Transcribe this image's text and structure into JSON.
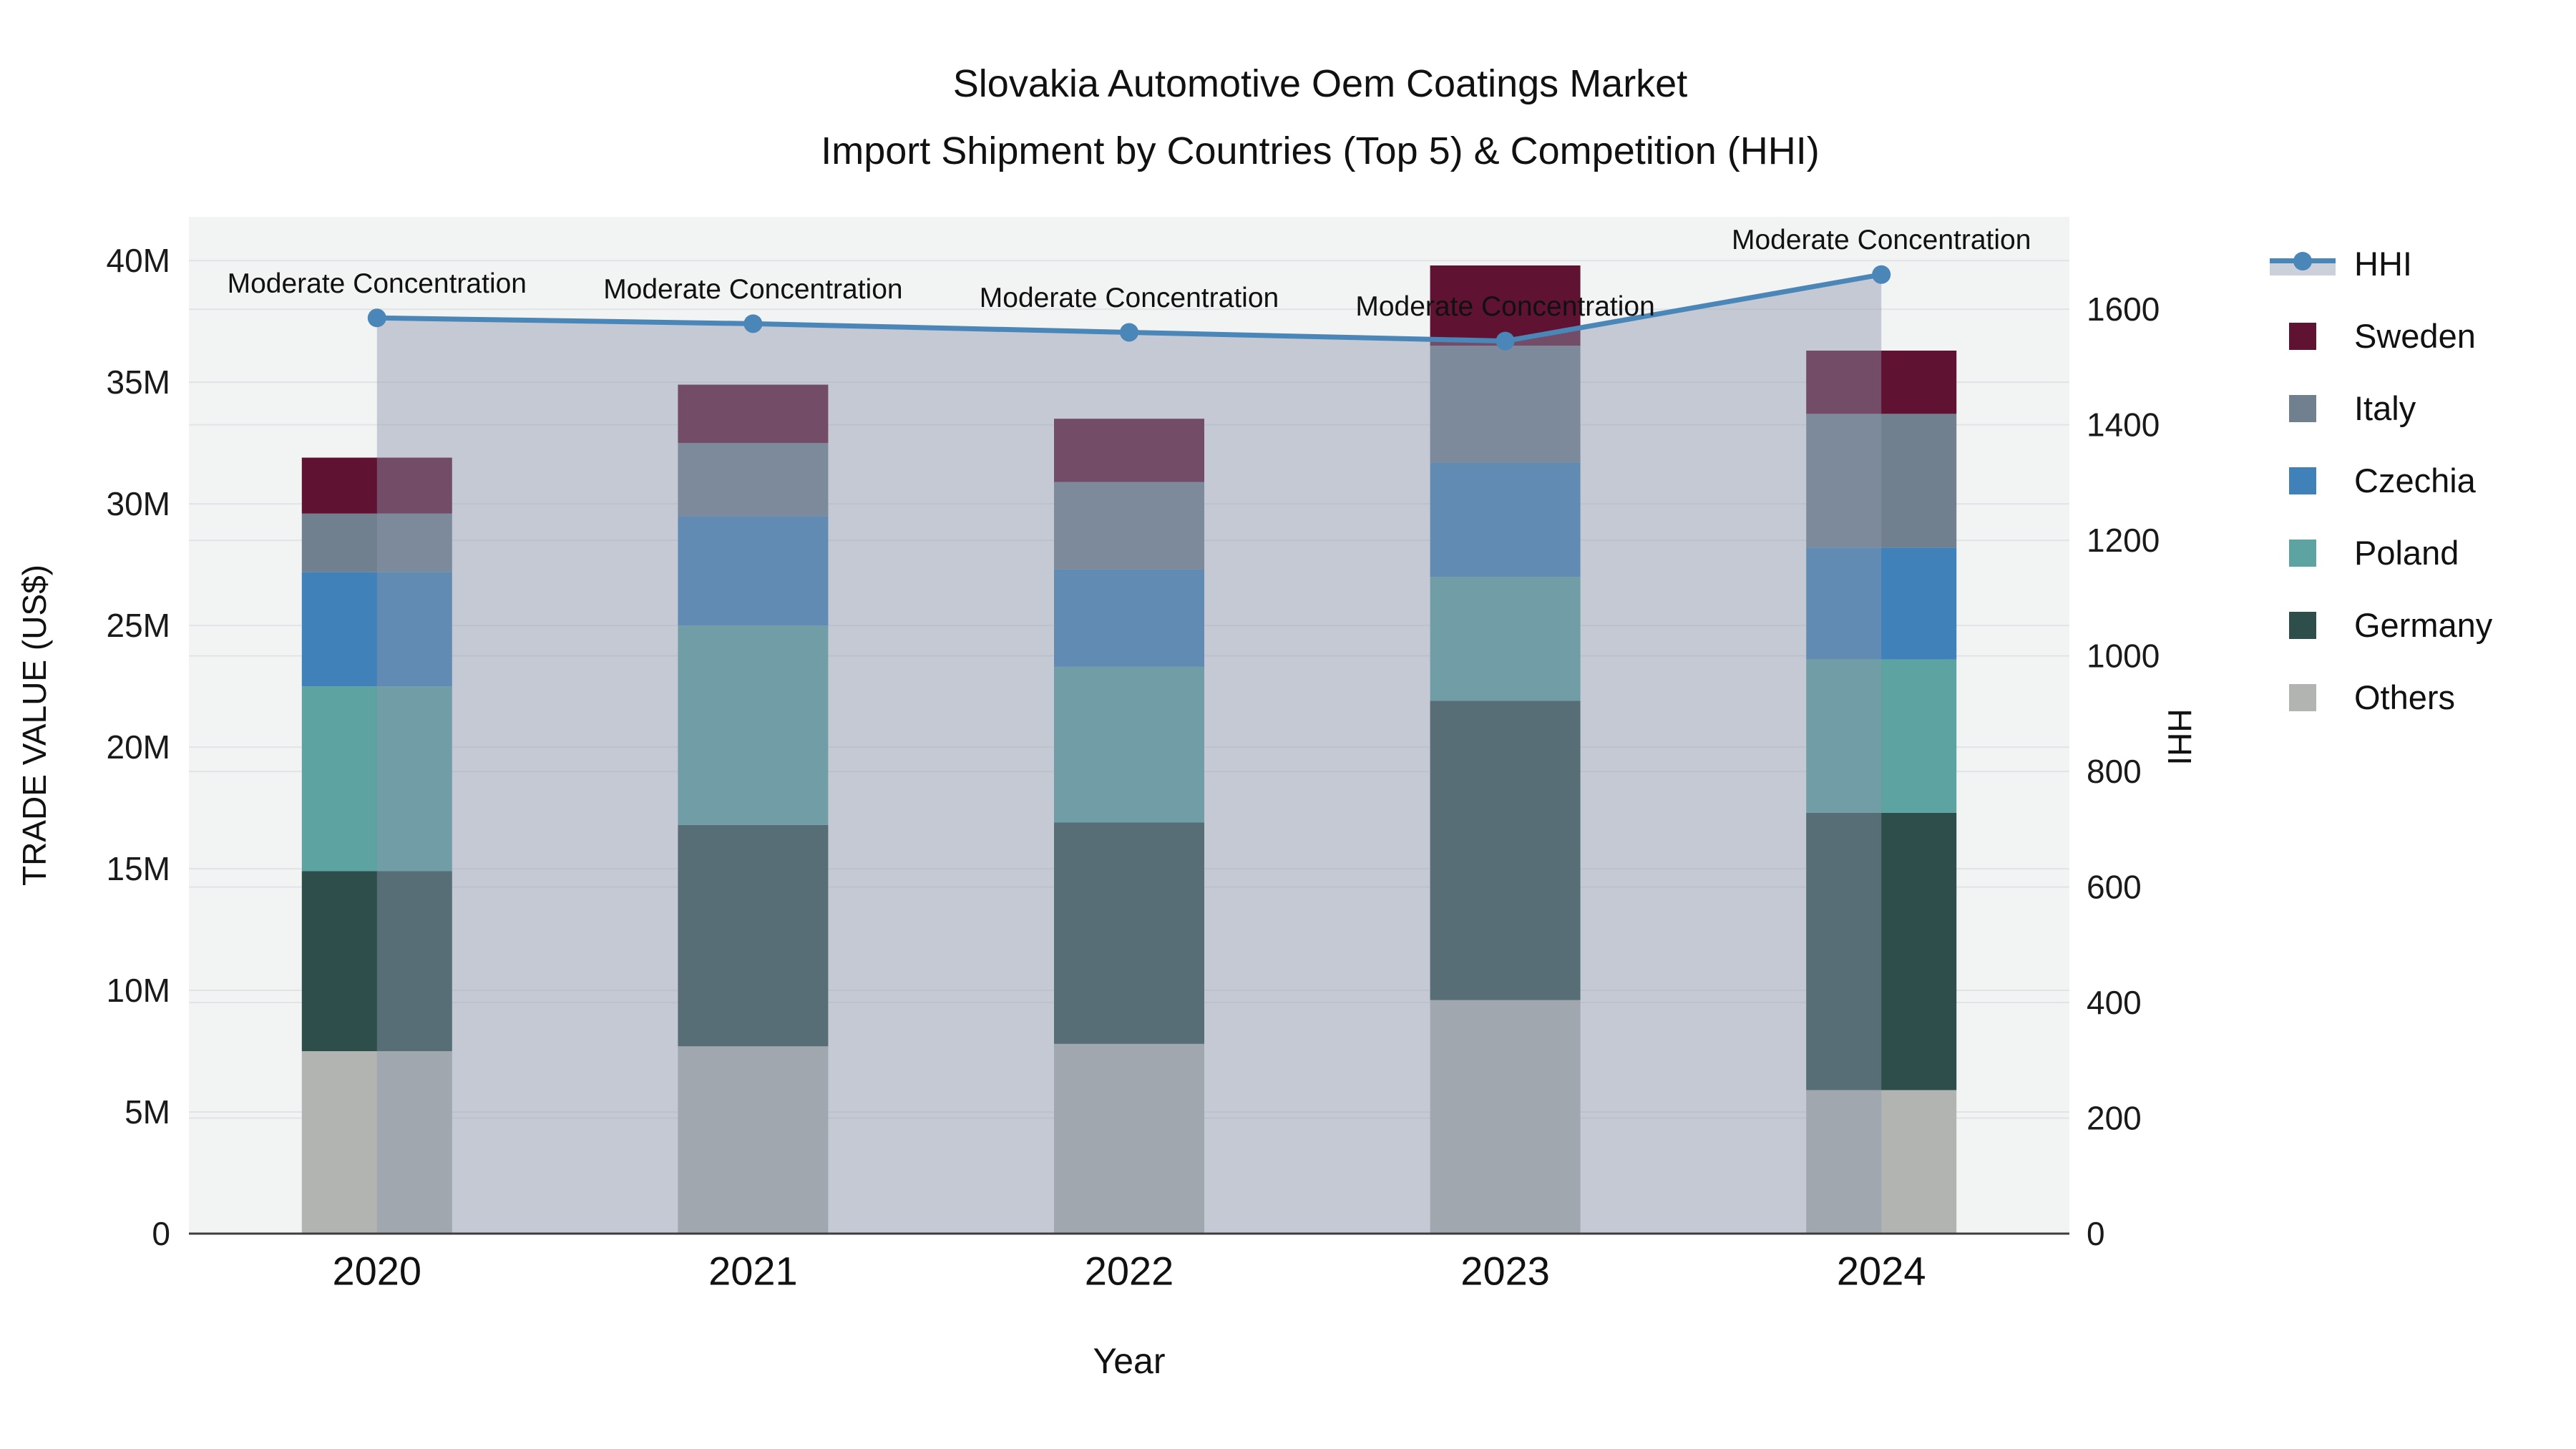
{
  "chart_data": {
    "type": "stacked-bar+line-dual-axis",
    "title": "Slovakia Automotive Oem Coatings Market",
    "subtitle": "Import Shipment by Countries (Top 5) & Competition (HHI)",
    "xlabel": "Year",
    "ylabel_left": "TRADE VALUE (US$)",
    "ylabel_right": "HHI",
    "values_unit": "millions of US$",
    "categories": [
      "2020",
      "2021",
      "2022",
      "2023",
      "2024"
    ],
    "stack_order_note": "series listed bottom-to-top",
    "series": [
      {
        "name": "Others",
        "color": "#b2b4b1",
        "values": [
          7.5,
          7.7,
          7.8,
          9.6,
          5.9
        ]
      },
      {
        "name": "Germany",
        "color": "#2e4e4b",
        "values": [
          7.4,
          9.1,
          9.1,
          12.3,
          11.4
        ]
      },
      {
        "name": "Poland",
        "color": "#5ca3a2",
        "values": [
          7.6,
          8.2,
          6.4,
          5.1,
          6.3
        ]
      },
      {
        "name": "Czechia",
        "color": "#4181ba",
        "values": [
          4.7,
          4.5,
          4.0,
          4.7,
          4.6
        ]
      },
      {
        "name": "Italy",
        "color": "#71808f",
        "values": [
          2.4,
          3.0,
          3.6,
          4.8,
          5.5
        ]
      },
      {
        "name": "Sweden",
        "color": "#5f1231",
        "values": [
          2.3,
          2.4,
          2.6,
          3.3,
          2.6
        ]
      }
    ],
    "bar_totals": [
      31.9,
      34.9,
      33.5,
      39.8,
      36.3
    ],
    "line": {
      "name": "HHI",
      "axis": "right",
      "color": "#4b86b8",
      "area_fill_color": "rgba(140,150,172,0.45)",
      "values": [
        1585,
        1575,
        1560,
        1545,
        1660
      ]
    },
    "annotations": [
      {
        "x": "2020",
        "text": "Moderate Concentration"
      },
      {
        "x": "2021",
        "text": "Moderate Concentration"
      },
      {
        "x": "2022",
        "text": "Moderate Concentration"
      },
      {
        "x": "2023",
        "text": "Moderate Concentration"
      },
      {
        "x": "2024",
        "text": "Moderate Concentration"
      }
    ],
    "axis_left": {
      "min": 0,
      "max_visible": 41.8,
      "tick_step": 5,
      "ticks": [
        {
          "value": 0,
          "label": "0"
        },
        {
          "value": 5,
          "label": "5M"
        },
        {
          "value": 10,
          "label": "10M"
        },
        {
          "value": 15,
          "label": "15M"
        },
        {
          "value": 20,
          "label": "20M"
        },
        {
          "value": 25,
          "label": "25M"
        },
        {
          "value": 30,
          "label": "30M"
        },
        {
          "value": 35,
          "label": "35M"
        },
        {
          "value": 40,
          "label": "40M"
        }
      ]
    },
    "axis_right": {
      "min": 0,
      "max_visible": 1760,
      "tick_step": 200,
      "ticks": [
        {
          "value": 0,
          "label": "0"
        },
        {
          "value": 200,
          "label": "200"
        },
        {
          "value": 400,
          "label": "400"
        },
        {
          "value": 600,
          "label": "600"
        },
        {
          "value": 800,
          "label": "800"
        },
        {
          "value": 1000,
          "label": "1000"
        },
        {
          "value": 1200,
          "label": "1200"
        },
        {
          "value": 1400,
          "label": "1400"
        },
        {
          "value": 1600,
          "label": "1600"
        }
      ]
    },
    "grid": true,
    "legend_position": "right",
    "legend_order": [
      "HHI",
      "Sweden",
      "Italy",
      "Czechia",
      "Poland",
      "Germany",
      "Others"
    ],
    "plot_background": "#f2f3f3",
    "gridline_color": "#e2e3e7",
    "axis_line_color": "#3d3d3d"
  }
}
